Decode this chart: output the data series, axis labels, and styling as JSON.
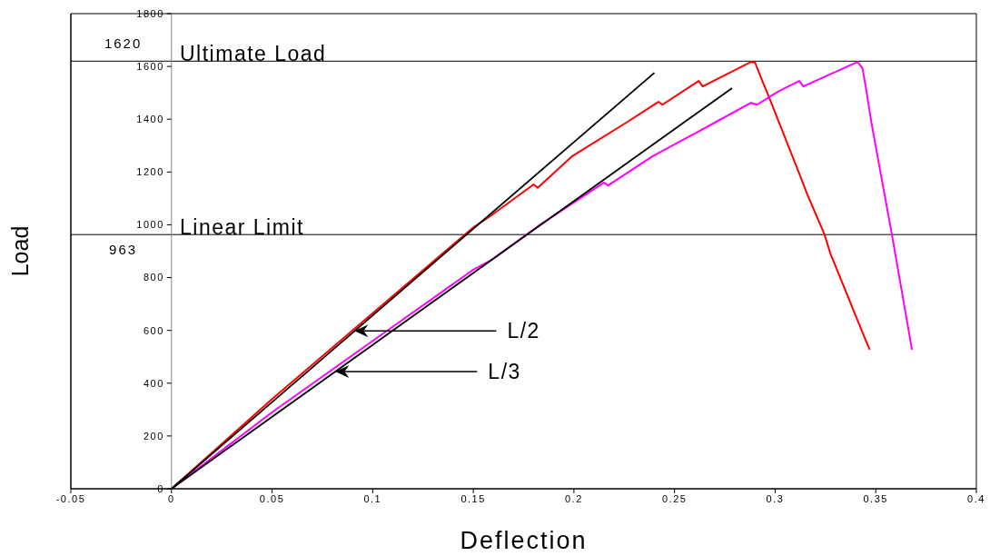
{
  "chart_data": {
    "type": "line",
    "xlabel": "Deflection",
    "ylabel": "Load",
    "xlim": [
      -0.05,
      0.4
    ],
    "xticks": [
      -0.05,
      0,
      0.05,
      0.1,
      0.15,
      0.2,
      0.25,
      0.3,
      0.35,
      0.4
    ],
    "ylim": [
      0,
      1800
    ],
    "yticks": [
      0,
      200,
      400,
      600,
      800,
      1000,
      1200,
      1400,
      1600,
      1800
    ],
    "marker": "none",
    "line_style": "solid",
    "series": [
      {
        "color": "#ff0000",
        "x": [
          0,
          0.05,
          0.1,
          0.13,
          0.15,
          0.159,
          0.18,
          0.182,
          0.199,
          0.226,
          0.242,
          0.244,
          0.262,
          0.264,
          0.288,
          0.29,
          0.294,
          0.297,
          0.312,
          0.316,
          0.3245,
          0.3276,
          0.3434,
          0.347
        ],
        "values": [
          0,
          340,
          665,
          860,
          990,
          1036,
          1153,
          1140,
          1259,
          1387,
          1466,
          1455,
          1545,
          1524,
          1617,
          1615,
          1538,
          1483,
          1194,
          1115,
          964,
          888,
          592,
          527
        ]
      },
      {
        "color": "#ff00ff",
        "x": [
          0,
          0.05,
          0.1,
          0.15,
          0.159,
          0.182,
          0.215,
          0.217,
          0.239,
          0.27,
          0.288,
          0.291,
          0.302,
          0.312,
          0.314,
          0.341,
          0.3434,
          0.345,
          0.348,
          0.358,
          0.368
        ],
        "values": [
          0,
          290,
          560,
          830,
          867,
          994,
          1160,
          1149,
          1259,
          1387,
          1462,
          1455,
          1507,
          1545,
          1524,
          1617,
          1593,
          1524,
          1380,
          964,
          527
        ]
      },
      {
        "color": "#000000",
        "x": [
          0,
          0.24
        ],
        "values": [
          0,
          1576
        ]
      },
      {
        "color": "#000000",
        "x": [
          0,
          0.2786
        ],
        "values": [
          0,
          1518
        ]
      }
    ],
    "ref_lines": [
      {
        "axis": "y",
        "value": 1620,
        "label": "Ultimate Load",
        "color": "#000000"
      },
      {
        "axis": "y",
        "value": 963,
        "label": "Linear Limit",
        "color": "#000000"
      }
    ],
    "annotations": [
      {
        "text": "1620",
        "x": -0.024,
        "y": 1620
      },
      {
        "text": "963",
        "x": -0.024,
        "y": 963
      },
      {
        "text": "L/2",
        "x": 0.091,
        "y": 598
      },
      {
        "text": "L/3",
        "x": 0.0815,
        "y": 444
      }
    ]
  }
}
